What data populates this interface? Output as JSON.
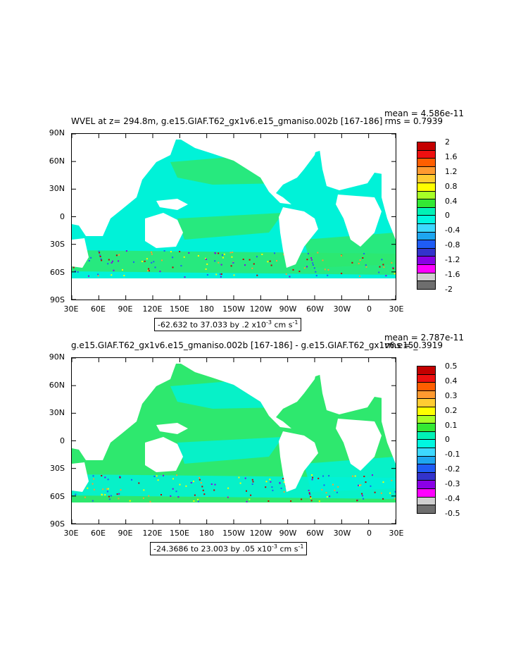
{
  "panels": [
    {
      "title": "WVEL at z= 294.8m, g.e15.GIAF.T62_gx1v6.e15_gmaniso.002b [167-186]",
      "mean": "mean = 4.586e-11",
      "rms": "rms = 0.7939",
      "range_text": "-62.632 to 37.033 by .2 x10",
      "range_exp": "-3",
      "range_unit_a": " cm s",
      "range_unit_exp": "-1",
      "colorbar": {
        "labels": [
          "2",
          "1.6",
          "1.2",
          "0.8",
          "0.4",
          "0",
          "-0.4",
          "-0.8",
          "-1.2",
          "-1.6",
          "-2"
        ],
        "colors": [
          "#c40000",
          "#ee1010",
          "#ff5e00",
          "#ff9a30",
          "#ffcc33",
          "#ffff00",
          "#a6ff26",
          "#33e833",
          "#00f2b6",
          "#00f7e0",
          "#3dd9ff",
          "#1ea6f0",
          "#1f5cf5",
          "#3333cc",
          "#8a00e6",
          "#ff00ff",
          "#cfcfcf",
          "#6e6e6e"
        ]
      }
    },
    {
      "title": "g.e15.GIAF.T62_gx1v6.e15_gmaniso.002b [167-186] - g.e15.GIAF.T62_gx1v6.e15_",
      "mean": "mean = 2.787e-11",
      "rms": "rms = 0.3919",
      "range_text": "-24.3686 to 23.003 by .05 x10",
      "range_exp": "-3",
      "range_unit_a": " cm s",
      "range_unit_exp": "-1",
      "colorbar": {
        "labels": [
          "0.5",
          "0.4",
          "0.3",
          "0.2",
          "0.1",
          "0",
          "-0.1",
          "-0.2",
          "-0.3",
          "-0.4",
          "-0.5"
        ],
        "colors": [
          "#c40000",
          "#ee1010",
          "#ff5e00",
          "#ff9a30",
          "#ffcc33",
          "#ffff00",
          "#a6ff26",
          "#33e833",
          "#00f2b6",
          "#00f7e0",
          "#3dd9ff",
          "#1ea6f0",
          "#1f5cf5",
          "#3333cc",
          "#8a00e6",
          "#ff00ff",
          "#cfcfcf",
          "#6e6e6e"
        ]
      }
    }
  ],
  "axes": {
    "lat_labels": [
      "90N",
      "60N",
      "30N",
      "0",
      "30S",
      "60S",
      "90S"
    ],
    "lon_labels": [
      "30E",
      "60E",
      "90E",
      "120E",
      "150E",
      "180",
      "150W",
      "120W",
      "90W",
      "60W",
      "30W",
      "0",
      "30E"
    ]
  },
  "map_colors": {
    "ocean_main_top": "#00f2d8",
    "ocean_alt_top": "#2ee86e",
    "ocean_main_bottom": "#2ee86e",
    "ocean_alt_bottom": "#00f2d8"
  }
}
